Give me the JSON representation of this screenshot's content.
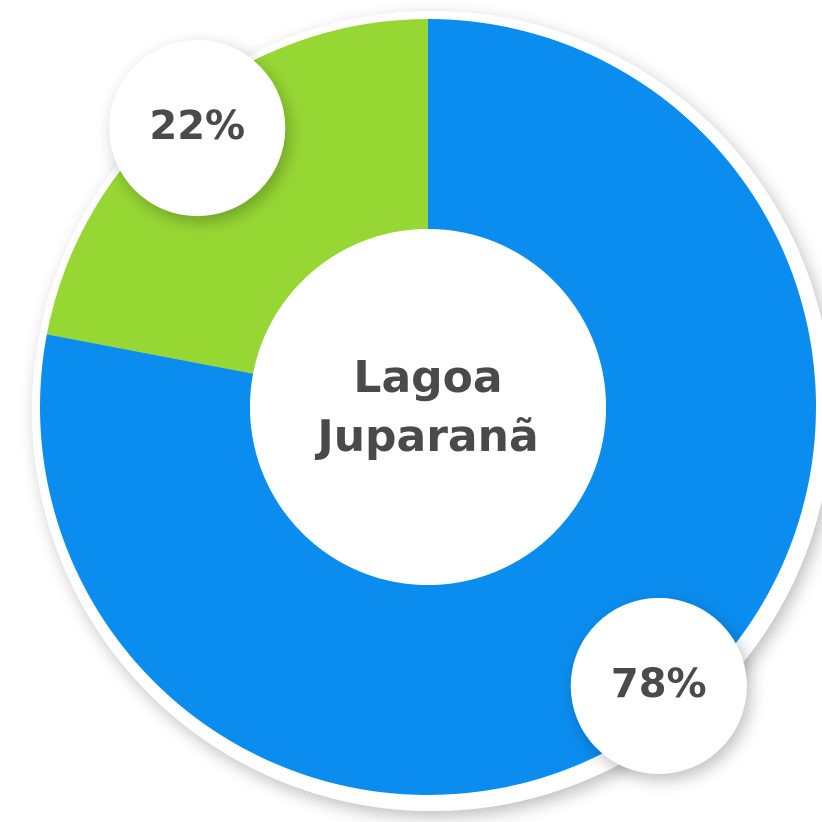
{
  "chart_data": {
    "type": "donut",
    "title": "Lagoa Juparanã",
    "values": [
      78,
      22
    ],
    "value_labels": [
      "78%",
      "22%"
    ],
    "colors": [
      "#0a8def",
      "#96d734"
    ]
  }
}
